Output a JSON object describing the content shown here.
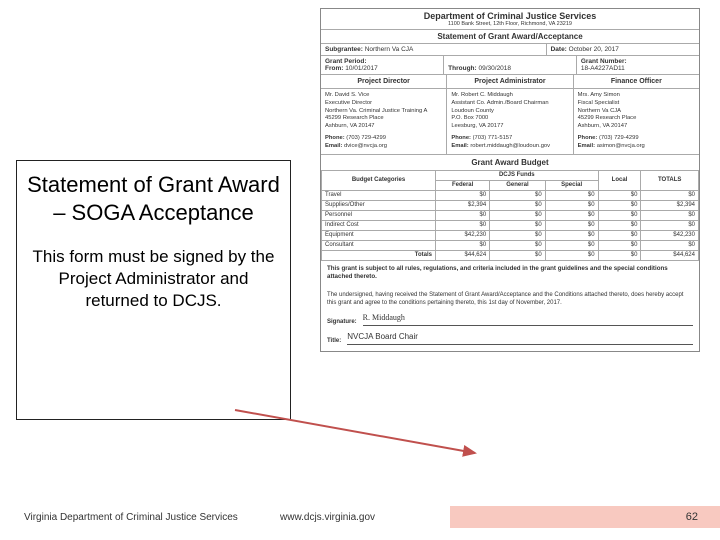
{
  "leftBox": {
    "title": "Statement of Grant Award – SOGA Acceptance",
    "subtitle": "This form must be signed by the Project Administrator and returned to DCJS."
  },
  "doc": {
    "dept": "Department of Criminal Justice Services",
    "addr": "1100 Bank Street, 12th Floor, Richmond, VA 23219",
    "stmt": "Statement of Grant Award/Acceptance",
    "subgrantee_lbl": "Subgrantee:",
    "subgrantee": "Northern Va CJA",
    "date_lbl": "Date:",
    "date": "October 20, 2017",
    "period_lbl": "Grant Period:",
    "from_lbl": "From:",
    "from": "10/01/2017",
    "through_lbl": "Through:",
    "through": "09/30/2018",
    "grantnum_lbl": "Grant Number:",
    "grantnum": "18-A4227AD11",
    "roles": {
      "pd": "Project Director",
      "pa": "Project Administrator",
      "fo": "Finance Officer"
    },
    "contacts": {
      "pd": {
        "name": "Mr. David S. Vice",
        "t1": "Executive Director",
        "t2": "Northern Va. Criminal Justice Training A",
        "t3": "45299 Research Place",
        "t4": "Ashburn, VA 20147",
        "phone_lbl": "Phone:",
        "phone": "(703) 729-4299",
        "email_lbl": "Email:",
        "email": "dvice@nvcja.org"
      },
      "pa": {
        "name": "Mr. Robert C. Middaugh",
        "t1": "Assistant Co. Admin./Board Chairman",
        "t2": "Loudoun County",
        "t3": "P.O. Box 7000",
        "t4": "Leesburg, VA 20177",
        "phone_lbl": "Phone:",
        "phone": "(703) 771-5157",
        "email_lbl": "Email:",
        "email": "robert.middaugh@loudoun.gov"
      },
      "fo": {
        "name": "Mrs. Amy Simon",
        "t1": "Fiscal Specialist",
        "t2": "Northern Va CJA",
        "t3": "45299 Research Place",
        "t4": "Ashburn, VA 20147",
        "phone_lbl": "Phone:",
        "phone": "(703) 729-4299",
        "email_lbl": "Email:",
        "email": "asimon@nvcja.org"
      }
    },
    "budget_title": "Grant Award Budget",
    "budget_cols": {
      "cat": "Budget Categories",
      "dcjs": "DCJS Funds",
      "fed": "Federal",
      "gen": "General",
      "spec": "Special",
      "local": "Local",
      "totals": "TOTALS"
    },
    "budget_rows": [
      {
        "cat": "Travel",
        "fed": "$0",
        "gen": "$0",
        "spec": "$0",
        "local": "$0",
        "tot": "$0"
      },
      {
        "cat": "Supplies/Other",
        "fed": "$2,394",
        "gen": "$0",
        "spec": "$0",
        "local": "$0",
        "tot": "$2,394"
      },
      {
        "cat": "Personnel",
        "fed": "$0",
        "gen": "$0",
        "spec": "$0",
        "local": "$0",
        "tot": "$0"
      },
      {
        "cat": "Indirect Cost",
        "fed": "$0",
        "gen": "$0",
        "spec": "$0",
        "local": "$0",
        "tot": "$0"
      },
      {
        "cat": "Equipment",
        "fed": "$42,230",
        "gen": "$0",
        "spec": "$0",
        "local": "$0",
        "tot": "$42,230"
      },
      {
        "cat": "Consultant",
        "fed": "$0",
        "gen": "$0",
        "spec": "$0",
        "local": "$0",
        "tot": "$0"
      }
    ],
    "budget_totals": {
      "cat": "Totals",
      "fed": "$44,624",
      "gen": "$0",
      "spec": "$0",
      "local": "$0",
      "tot": "$44,624"
    },
    "note": "This grant is subject to all rules, regulations, and criteria included in the grant guidelines and the special conditions attached thereto.",
    "sig_text": "The undersigned, having received the Statement of Grant Award/Acceptance and the Conditions attached thereto, does hereby accept this grant and agree to the conditions pertaining thereto, this 1st day of November, 2017.",
    "sig_lbl": "Signature:",
    "sig_value": "R. Middaugh",
    "title_lbl": "Title:",
    "title_value": "NVCJA Board Chair"
  },
  "footer": {
    "left": "Virginia Department of Criminal Justice Services",
    "mid": "www.dcjs.virginia.gov",
    "page": "62"
  },
  "colors": {
    "arrow": "#c0504d",
    "footer_bg": "#f8c9c0"
  }
}
